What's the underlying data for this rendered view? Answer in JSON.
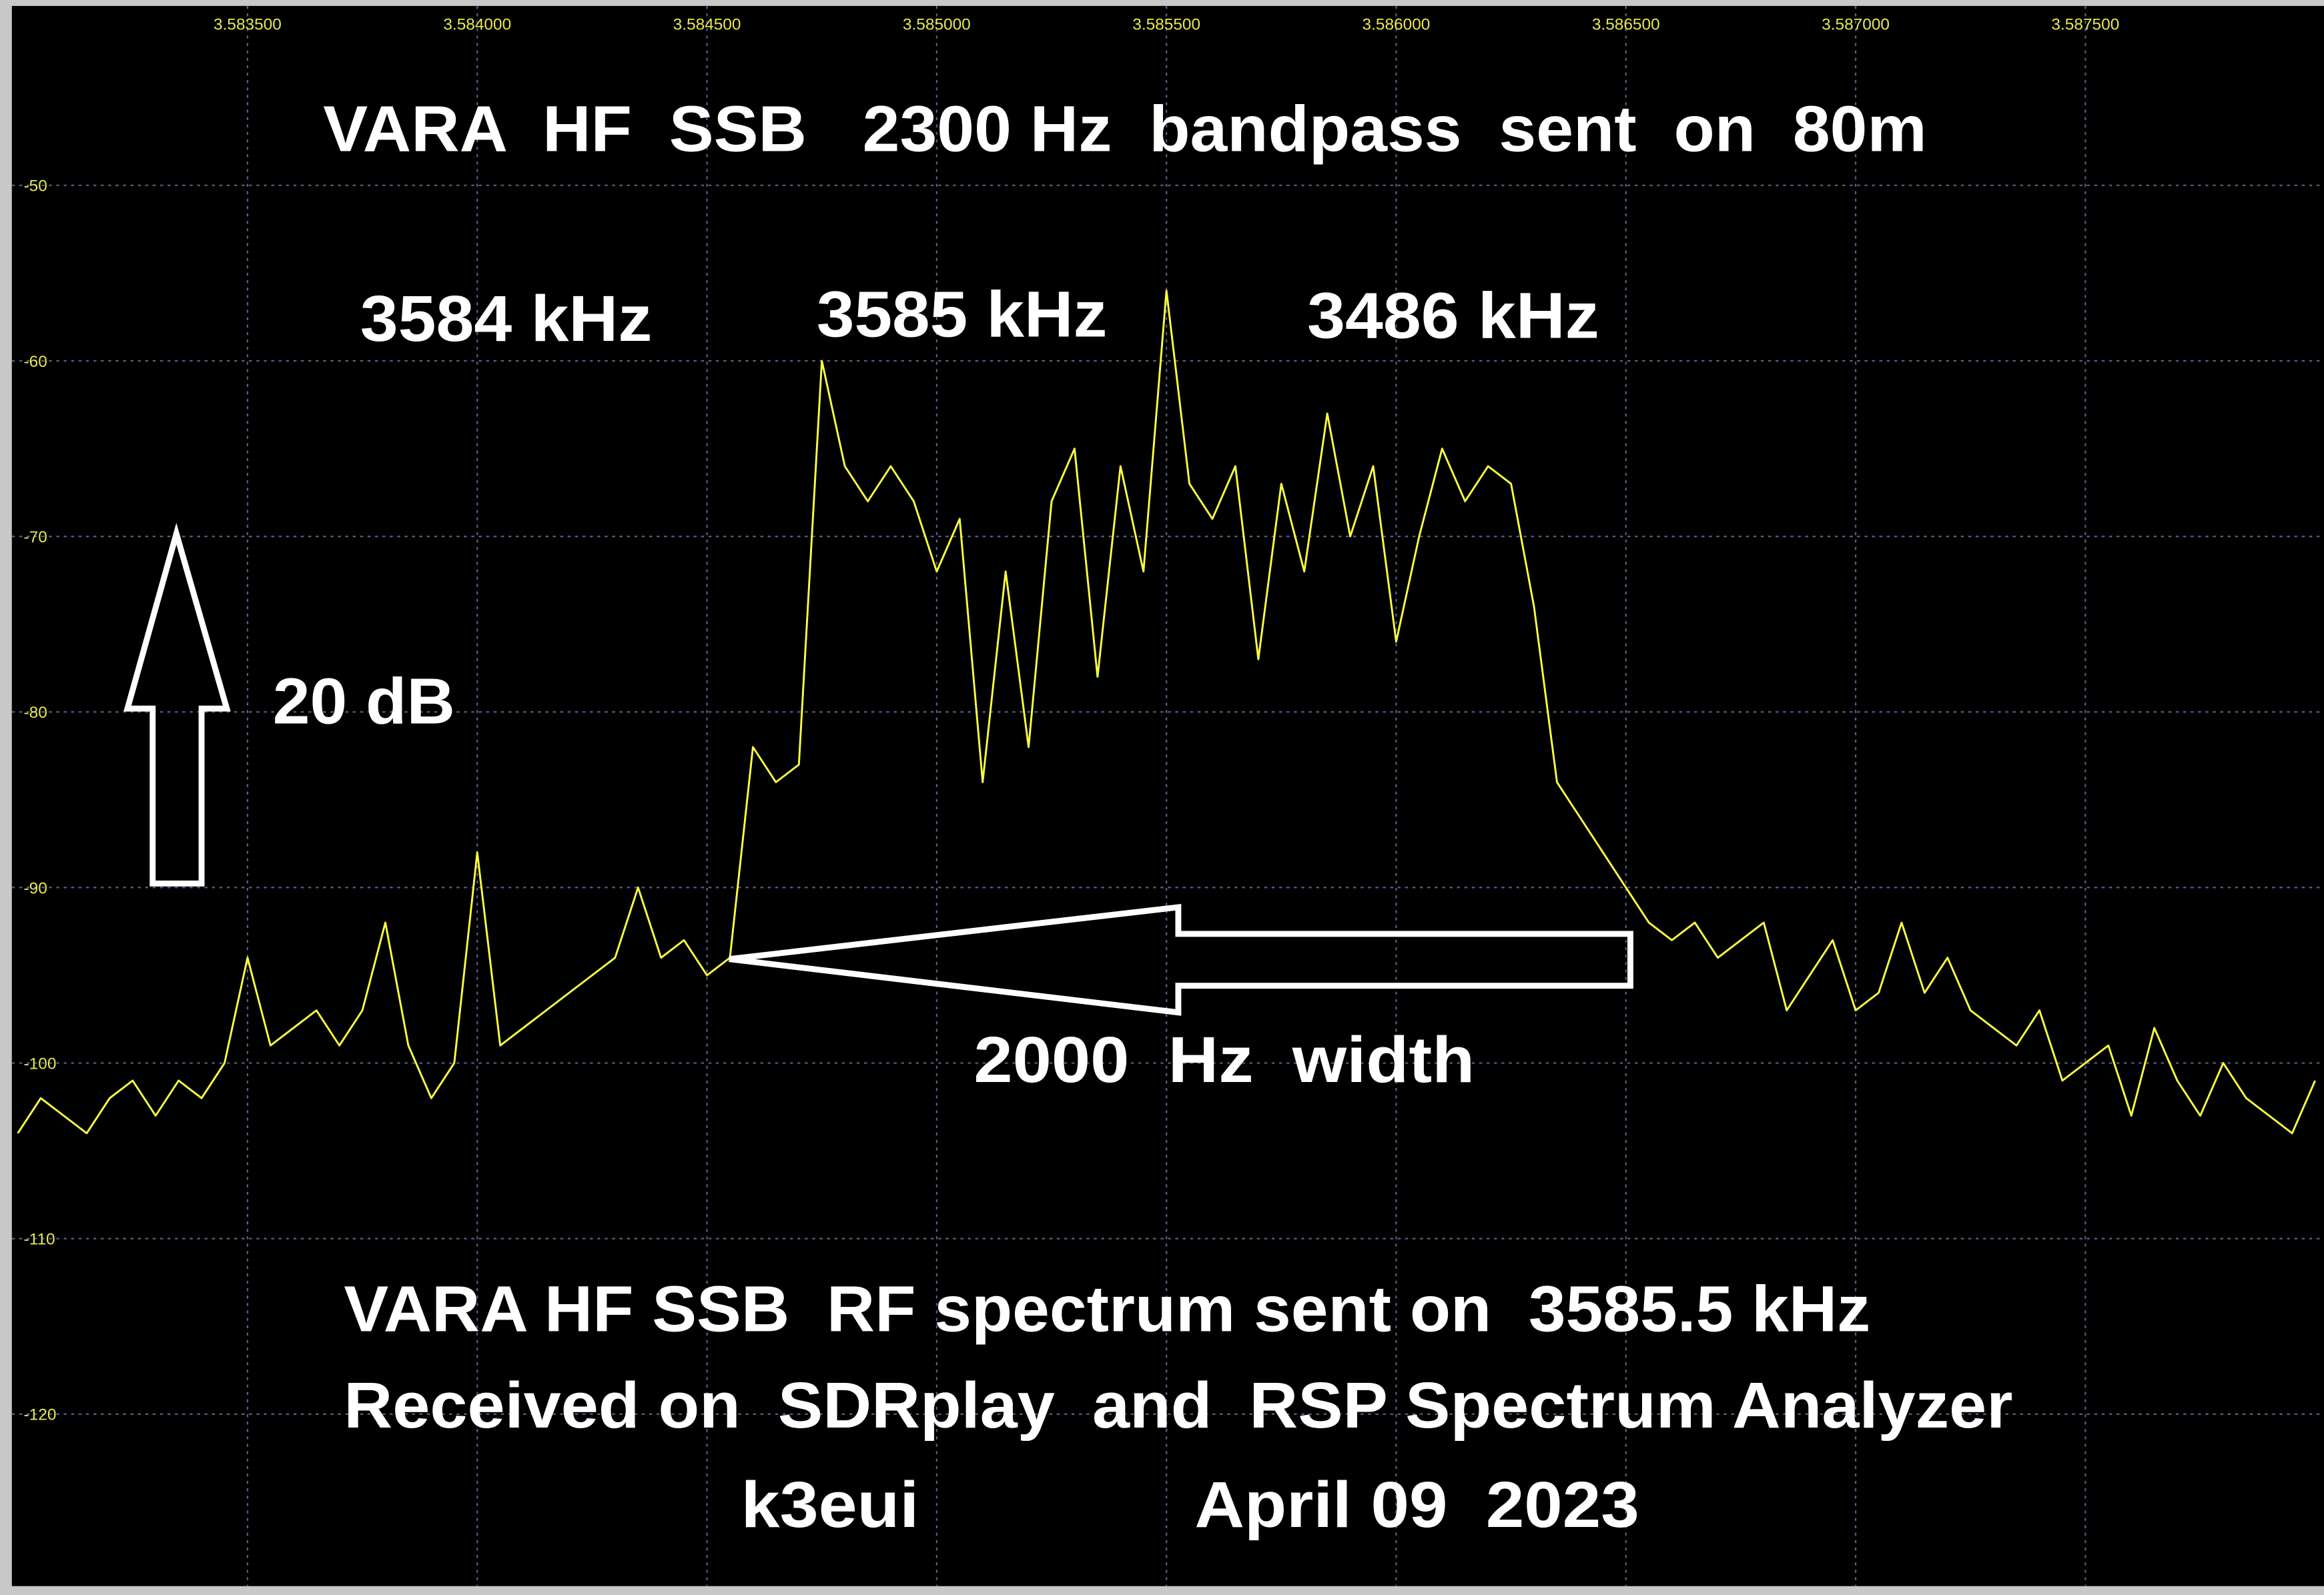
{
  "chart_data": {
    "type": "line",
    "title": "VARA  HF  SSB   2300 Hz  bandpass  sent  on  80m",
    "annotations": [
      "3584 kHz",
      "3585 kHz",
      "3486 kHz",
      "20 dB",
      "2000  Hz  width",
      "VARA HF SSB  RF spectrum sent on  3585.5 kHz",
      "Received on  SDRplay  and  RSP Spectrum Analyzer",
      "k3eui",
      "April 09  2023"
    ],
    "color": "#ffff40",
    "grid": true,
    "xlim": [
      3.583,
      3.588
    ],
    "ylim": [
      -130,
      -40
    ],
    "xticks": [
      {
        "value": 3.5835,
        "label": "3.583500"
      },
      {
        "value": 3.584,
        "label": "3.584000"
      },
      {
        "value": 3.5845,
        "label": "3.584500"
      },
      {
        "value": 3.585,
        "label": "3.585000"
      },
      {
        "value": 3.5855,
        "label": "3.585500"
      },
      {
        "value": 3.586,
        "label": "3.586000"
      },
      {
        "value": 3.5865,
        "label": "3.586500"
      },
      {
        "value": 3.587,
        "label": "3.587000"
      },
      {
        "value": 3.5875,
        "label": "3.587500"
      }
    ],
    "yticks": [
      -50,
      -60,
      -70,
      -80,
      -90,
      -100,
      -110,
      -120
    ],
    "x": [
      3.583,
      3.58305,
      3.5831,
      3.58315,
      3.5832,
      3.58325,
      3.5833,
      3.58335,
      3.5834,
      3.58345,
      3.5835,
      3.58355,
      3.5836,
      3.58365,
      3.5837,
      3.58375,
      3.5838,
      3.58385,
      3.5839,
      3.58395,
      3.584,
      3.58405,
      3.5841,
      3.58415,
      3.5842,
      3.58425,
      3.5843,
      3.58435,
      3.5844,
      3.58445,
      3.5845,
      3.58455,
      3.5846,
      3.58465,
      3.5847,
      3.58475,
      3.5848,
      3.58485,
      3.5849,
      3.58495,
      3.585,
      3.58505,
      3.5851,
      3.58515,
      3.5852,
      3.58525,
      3.5853,
      3.58535,
      3.5854,
      3.58545,
      3.5855,
      3.58555,
      3.5856,
      3.58565,
      3.5857,
      3.58575,
      3.5858,
      3.58585,
      3.5859,
      3.58595,
      3.586,
      3.58605,
      3.5861,
      3.58615,
      3.5862,
      3.58625,
      3.5863,
      3.58635,
      3.5864,
      3.58645,
      3.5865,
      3.58655,
      3.5866,
      3.58665,
      3.5867,
      3.58675,
      3.5868,
      3.58685,
      3.5869,
      3.58695,
      3.587,
      3.58705,
      3.5871,
      3.58715,
      3.5872,
      3.58725,
      3.5873,
      3.58735,
      3.5874,
      3.58745,
      3.5875,
      3.58755,
      3.5876,
      3.58765,
      3.5877,
      3.58775,
      3.5878,
      3.58785,
      3.5879,
      3.58795,
      3.588
    ],
    "values": [
      -104,
      -102,
      -103,
      -104,
      -102,
      -101,
      -103,
      -101,
      -102,
      -100,
      -94,
      -99,
      -98,
      -97,
      -99,
      -97,
      -92,
      -99,
      -102,
      -100,
      -88,
      -99,
      -98,
      -97,
      -96,
      -95,
      -94,
      -90,
      -94,
      -93,
      -95,
      -94,
      -82,
      -84,
      -83,
      -60,
      -66,
      -68,
      -66,
      -68,
      -72,
      -69,
      -84,
      -72,
      -82,
      -68,
      -65,
      -78,
      -66,
      -72,
      -56,
      -67,
      -69,
      -66,
      -77,
      -67,
      -72,
      -63,
      -70,
      -66,
      -76,
      -70,
      -65,
      -68,
      -66,
      -67,
      -74,
      -84,
      -86,
      -88,
      -90,
      -92,
      -93,
      -92,
      -94,
      -93,
      -92,
      -97,
      -95,
      -93,
      -97,
      -96,
      -92,
      -96,
      -94,
      -97,
      -98,
      -99,
      -97,
      -101,
      -100,
      -99,
      -103,
      -98,
      -101,
      -103,
      -100,
      -102,
      -103,
      -104,
      -101
    ]
  }
}
